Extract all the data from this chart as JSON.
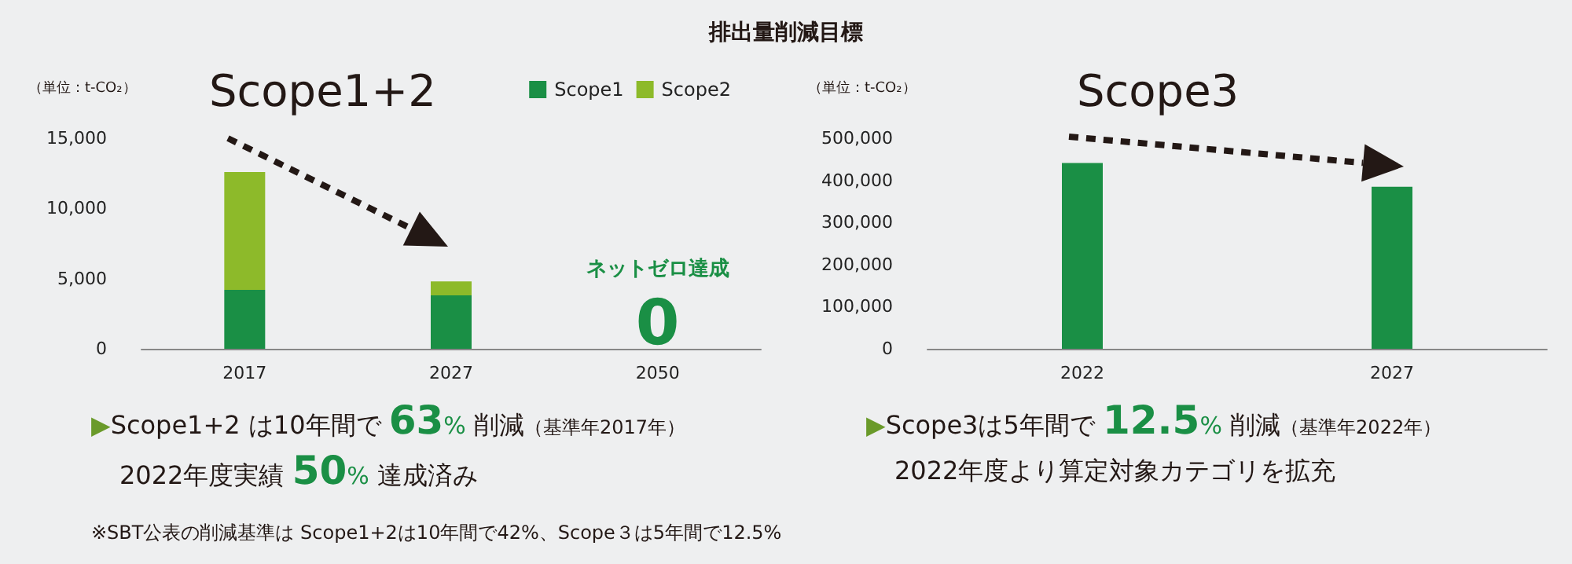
{
  "chart_data": [
    {
      "type": "bar",
      "title": "排出量削減目標",
      "subtitle": "Scope1+2",
      "ylabel": "（単位：t-CO₂）",
      "categories": [
        "2017",
        "2027",
        "2050"
      ],
      "stacked": true,
      "series": [
        {
          "name": "Scope1",
          "color": "#1a8f45",
          "values": [
            4200,
            3800,
            0
          ]
        },
        {
          "name": "Scope2",
          "color": "#8dba2a",
          "values": [
            8400,
            1000,
            0
          ]
        }
      ],
      "ylim": [
        0,
        15000
      ],
      "yticks": [
        0,
        {
          "value": 5000,
          "label": "5,000"
        },
        {
          "value": 10000,
          "label": "10,000"
        },
        {
          "value": 15000,
          "label": "15,000"
        }
      ],
      "legend": "top right",
      "grid": false,
      "annotations": [
        {
          "text": "0",
          "x": "2050",
          "y": 0
        },
        "ネットゼロ達成",
        "▶Scope1+2 は10年間で 63% 削減（基準年2017年）",
        "2022年度実績 50% 達成済み",
        "※SBT公表の削減基準は Scope1+2は10年間で42%、Scope３は5年間で12.5%"
      ]
    },
    {
      "type": "bar",
      "subtitle": "Scope3",
      "ylabel": "（単位：t-CO₂）",
      "categories": [
        "2022",
        "2027"
      ],
      "values": [
        441000,
        385000
      ],
      "color": "#1a8f45",
      "ylim": [
        0,
        500000
      ],
      "yticks": [
        0,
        {
          "value": 100000,
          "label": "100,000"
        },
        {
          "value": 200000,
          "label": "200,000"
        },
        {
          "value": 300000,
          "label": "300,000"
        },
        {
          "value": 400000,
          "label": "400,000"
        },
        {
          "value": 500000,
          "label": "500,000"
        }
      ],
      "legend": false,
      "grid": false,
      "annotations": [
        "▶Scope3は5年間で 12.5% 削減（基準年2022年）",
        "2022年度より算定対象カテゴリを拡充"
      ]
    }
  ]
}
